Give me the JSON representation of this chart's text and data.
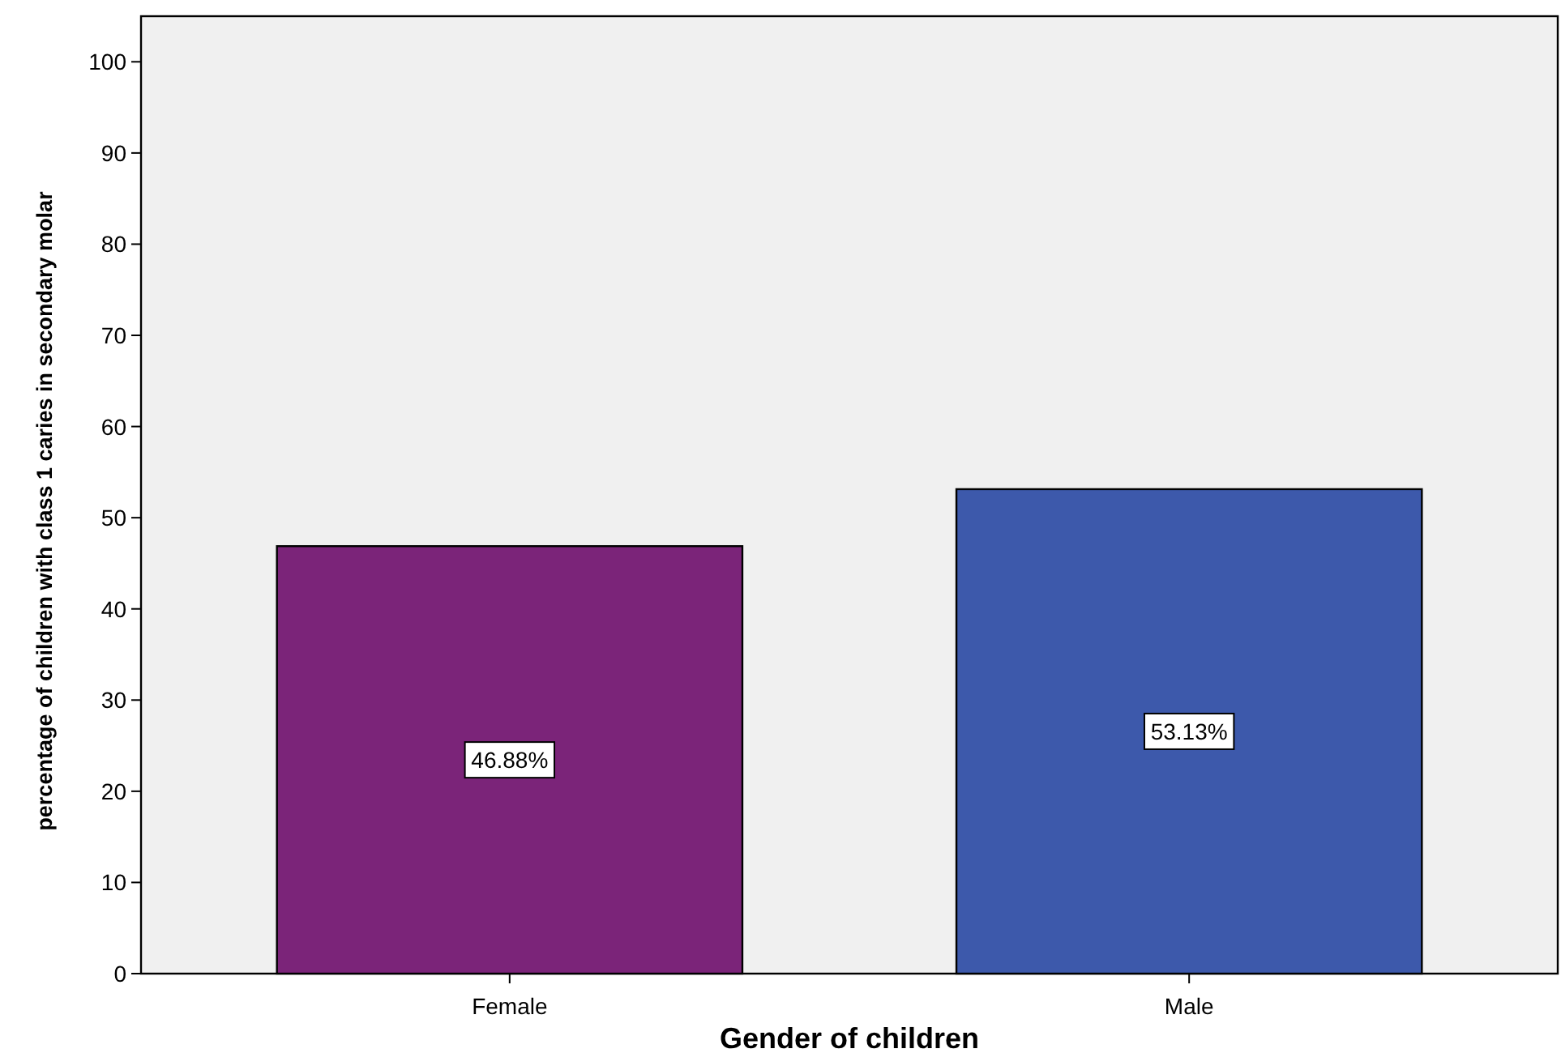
{
  "chart_data": {
    "type": "bar",
    "xlabel": "Gender of children",
    "ylabel": "percentage of children with class 1 caries in secondary molar",
    "categories": [
      "Female",
      "Male"
    ],
    "values": [
      46.88,
      53.13
    ],
    "colors": [
      "#7b2479",
      "#3d59ab"
    ],
    "value_labels": [
      "46.88%",
      "53.13%"
    ],
    "ylim": [
      0,
      105
    ],
    "yticks": [
      0,
      10,
      20,
      30,
      40,
      50,
      60,
      70,
      80,
      90,
      100
    ],
    "grid": false
  }
}
